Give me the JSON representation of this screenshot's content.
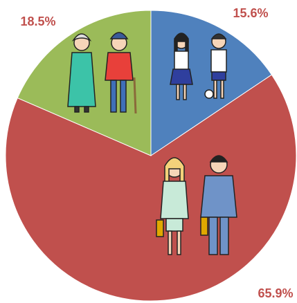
{
  "chart_data": {
    "type": "pie",
    "values": [
      15.6,
      65.9,
      18.5
    ],
    "value_labels": [
      "15.6%",
      "65.9%",
      "18.5%"
    ],
    "colors": [
      "#4f81bd",
      "#c0504d",
      "#9bbb59"
    ],
    "start_angle": 0,
    "direction": "clockwise"
  }
}
